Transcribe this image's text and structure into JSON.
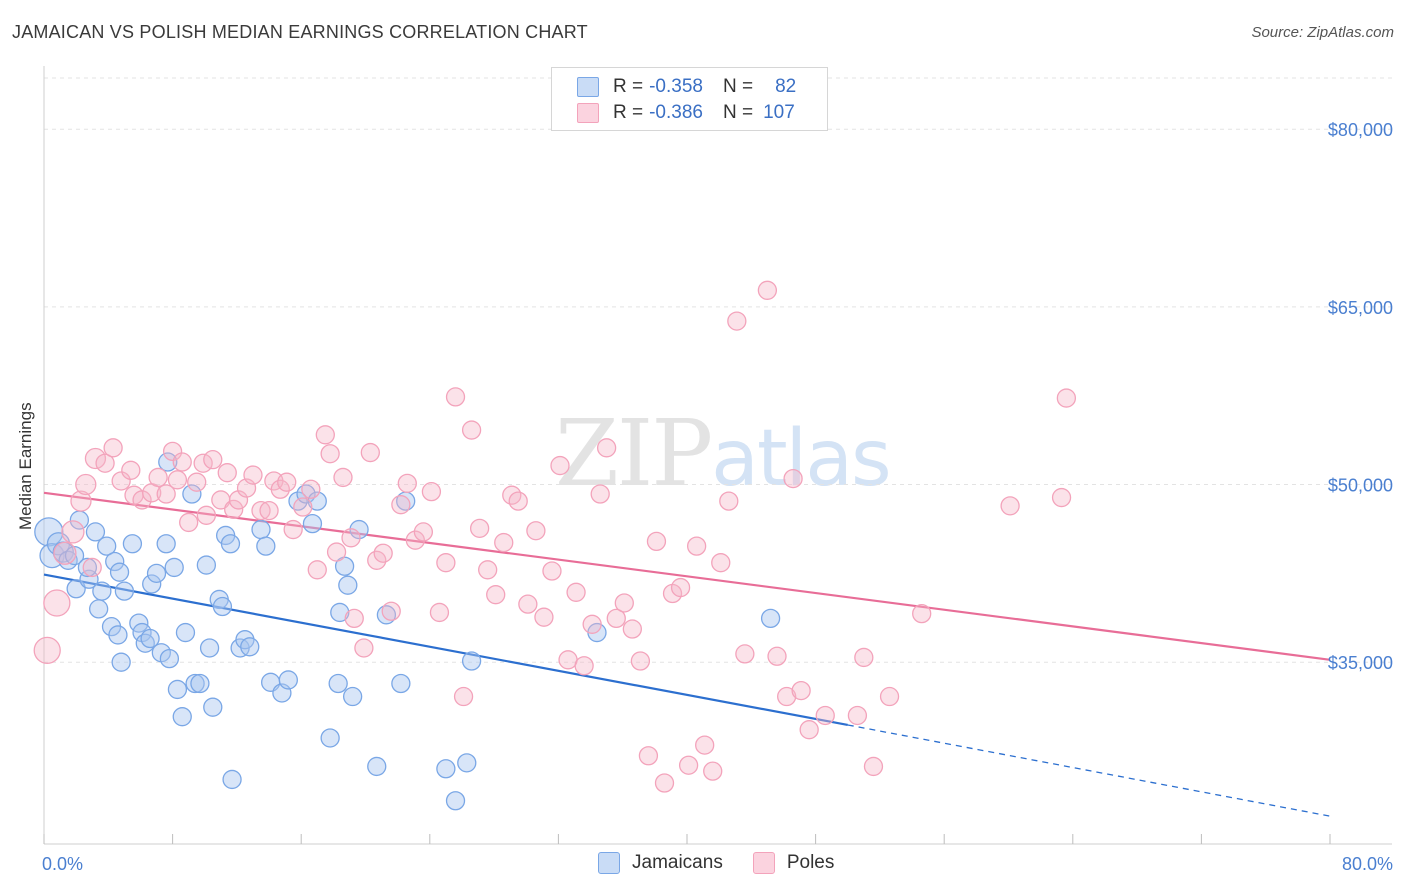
{
  "title": "JAMAICAN VS POLISH MEDIAN EARNINGS CORRELATION CHART",
  "source": "Source: ZipAtlas.com",
  "watermark": {
    "zip": "ZIP",
    "atlas": "atlas"
  },
  "legend": {
    "r_label": "R =",
    "n_label": "N =",
    "rows": [
      {
        "r": "-0.358",
        "n": "82",
        "color": "#a9c6f0"
      },
      {
        "r": "-0.386",
        "n": "107",
        "color": "#f6b6c8"
      }
    ]
  },
  "bottom_legend": [
    {
      "label": "Jamaicans",
      "color": "#a9c6f0"
    },
    {
      "label": "Poles",
      "color": "#f6b6c8"
    }
  ],
  "chart_data": {
    "type": "scatter",
    "title": "JAMAICAN VS POLISH MEDIAN EARNINGS CORRELATION CHART",
    "xlabel": "",
    "ylabel": "Median Earnings",
    "xlim": [
      0,
      80
    ],
    "ylim": [
      21000,
      85000
    ],
    "x_tick_labels": [
      "0.0%",
      "80.0%"
    ],
    "y_ticks": [
      {
        "value": 35000,
        "label": "$35,000"
      },
      {
        "value": 50000,
        "label": "$50,000"
      },
      {
        "value": 65000,
        "label": "$65,000"
      },
      {
        "value": 80000,
        "label": "$80,000"
      }
    ],
    "series": [
      {
        "name": "Jamaicans",
        "color": "#7aa7e6",
        "trend": {
          "x": [
            0,
            50
          ],
          "y": [
            42400,
            29700
          ],
          "dashed_to": [
            80,
            22000
          ],
          "color": "#2c6fcf"
        },
        "points": [
          [
            0.3,
            46000,
            14
          ],
          [
            0.5,
            44000,
            12
          ],
          [
            0.9,
            45000,
            11
          ],
          [
            1.2,
            44300,
            10
          ],
          [
            1.5,
            43600,
            9
          ],
          [
            1.9,
            44000,
            9
          ],
          [
            2.2,
            47000,
            9
          ],
          [
            2.0,
            41200,
            9
          ],
          [
            2.8,
            42000,
            9
          ],
          [
            2.7,
            43000,
            9
          ],
          [
            3.2,
            46000,
            9
          ],
          [
            3.4,
            39500,
            9
          ],
          [
            3.6,
            41000,
            9
          ],
          [
            3.9,
            44800,
            9
          ],
          [
            4.2,
            38000,
            9
          ],
          [
            4.4,
            43500,
            9
          ],
          [
            4.6,
            37300,
            9
          ],
          [
            4.7,
            42600,
            9
          ],
          [
            4.8,
            35000,
            9
          ],
          [
            5.0,
            41000,
            9
          ],
          [
            5.5,
            45000,
            9
          ],
          [
            5.9,
            38300,
            9
          ],
          [
            6.1,
            37500,
            9
          ],
          [
            6.3,
            36600,
            9
          ],
          [
            6.6,
            37000,
            9
          ],
          [
            6.7,
            41600,
            9
          ],
          [
            7.0,
            42500,
            9
          ],
          [
            7.3,
            35800,
            9
          ],
          [
            7.6,
            45000,
            9
          ],
          [
            7.8,
            35300,
            9
          ],
          [
            8.1,
            43000,
            9
          ],
          [
            8.3,
            32700,
            9
          ],
          [
            8.6,
            30400,
            9
          ],
          [
            8.8,
            37500,
            9
          ],
          [
            9.2,
            49200,
            9
          ],
          [
            9.4,
            33200,
            9
          ],
          [
            9.7,
            33200,
            9
          ],
          [
            10.1,
            43200,
            9
          ],
          [
            10.3,
            36200,
            9
          ],
          [
            10.5,
            31200,
            9
          ],
          [
            10.9,
            40300,
            9
          ],
          [
            11.1,
            39700,
            9
          ],
          [
            11.3,
            45700,
            9
          ],
          [
            11.6,
            45000,
            9
          ],
          [
            11.7,
            25100,
            9
          ],
          [
            12.2,
            36200,
            9
          ],
          [
            12.5,
            36900,
            9
          ],
          [
            12.8,
            36300,
            9
          ],
          [
            13.5,
            46200,
            9
          ],
          [
            13.8,
            44800,
            9
          ],
          [
            14.1,
            33300,
            9
          ],
          [
            14.8,
            32400,
            9
          ],
          [
            15.2,
            33500,
            9
          ],
          [
            15.8,
            48600,
            9
          ],
          [
            16.3,
            49200,
            9
          ],
          [
            16.7,
            46700,
            9
          ],
          [
            17.0,
            48600,
            9
          ],
          [
            17.8,
            28600,
            9
          ],
          [
            18.3,
            33200,
            9
          ],
          [
            18.4,
            39200,
            9
          ],
          [
            18.7,
            43100,
            9
          ],
          [
            18.9,
            41500,
            9
          ],
          [
            19.2,
            32100,
            9
          ],
          [
            19.6,
            46200,
            9
          ],
          [
            20.7,
            26200,
            9
          ],
          [
            21.3,
            39000,
            9
          ],
          [
            22.2,
            33200,
            9
          ],
          [
            22.5,
            48600,
            9
          ],
          [
            25.0,
            26000,
            9
          ],
          [
            25.6,
            23300,
            9
          ],
          [
            26.3,
            26500,
            9
          ],
          [
            26.6,
            35100,
            9
          ],
          [
            34.4,
            37500,
            9
          ],
          [
            45.2,
            38700,
            9
          ],
          [
            7.7,
            51900,
            9
          ]
        ]
      },
      {
        "name": "Poles",
        "color": "#f3a3bb",
        "trend": {
          "x": [
            0,
            80
          ],
          "y": [
            49300,
            35200
          ],
          "color": "#e86d97"
        },
        "points": [
          [
            0.2,
            36000,
            13
          ],
          [
            0.8,
            40000,
            13
          ],
          [
            1.3,
            44200,
            11
          ],
          [
            1.8,
            46000,
            11
          ],
          [
            2.3,
            48600,
            10
          ],
          [
            2.6,
            50000,
            10
          ],
          [
            3.0,
            43000,
            9
          ],
          [
            3.2,
            52200,
            10
          ],
          [
            3.8,
            51800,
            9
          ],
          [
            4.3,
            53100,
            9
          ],
          [
            4.8,
            50300,
            9
          ],
          [
            5.4,
            51200,
            9
          ],
          [
            5.6,
            49100,
            9
          ],
          [
            6.1,
            48700,
            9
          ],
          [
            6.7,
            49300,
            9
          ],
          [
            7.1,
            50600,
            9
          ],
          [
            7.6,
            49200,
            9
          ],
          [
            8.0,
            52800,
            9
          ],
          [
            8.3,
            50400,
            9
          ],
          [
            8.6,
            51900,
            9
          ],
          [
            9.0,
            46800,
            9
          ],
          [
            9.5,
            50200,
            9
          ],
          [
            9.9,
            51800,
            9
          ],
          [
            10.1,
            47400,
            9
          ],
          [
            10.5,
            52100,
            9
          ],
          [
            11.0,
            48700,
            9
          ],
          [
            11.4,
            51000,
            9
          ],
          [
            11.8,
            47900,
            9
          ],
          [
            12.1,
            48700,
            9
          ],
          [
            12.6,
            49700,
            9
          ],
          [
            13.0,
            50800,
            9
          ],
          [
            13.5,
            47800,
            9
          ],
          [
            14.0,
            47800,
            9
          ],
          [
            14.3,
            50300,
            9
          ],
          [
            14.7,
            49600,
            9
          ],
          [
            15.1,
            50200,
            9
          ],
          [
            15.5,
            46200,
            9
          ],
          [
            16.1,
            48100,
            9
          ],
          [
            16.6,
            49600,
            9
          ],
          [
            17.0,
            42800,
            9
          ],
          [
            17.5,
            54200,
            9
          ],
          [
            17.8,
            52600,
            9
          ],
          [
            18.2,
            44300,
            9
          ],
          [
            18.6,
            50600,
            9
          ],
          [
            19.1,
            45500,
            9
          ],
          [
            19.3,
            38700,
            9
          ],
          [
            19.9,
            36200,
            9
          ],
          [
            20.3,
            52700,
            9
          ],
          [
            20.7,
            43600,
            9
          ],
          [
            21.1,
            44200,
            9
          ],
          [
            21.6,
            39300,
            9
          ],
          [
            22.2,
            48300,
            9
          ],
          [
            22.6,
            50100,
            9
          ],
          [
            23.1,
            45300,
            9
          ],
          [
            23.6,
            46000,
            9
          ],
          [
            24.1,
            49400,
            9
          ],
          [
            24.6,
            39200,
            9
          ],
          [
            25.0,
            43400,
            9
          ],
          [
            25.6,
            57400,
            9
          ],
          [
            26.1,
            32100,
            9
          ],
          [
            26.6,
            54600,
            9
          ],
          [
            27.1,
            46300,
            9
          ],
          [
            27.6,
            42800,
            9
          ],
          [
            28.1,
            40700,
            9
          ],
          [
            28.6,
            45100,
            9
          ],
          [
            29.1,
            49100,
            9
          ],
          [
            29.5,
            48600,
            9
          ],
          [
            30.1,
            39900,
            9
          ],
          [
            30.6,
            46100,
            9
          ],
          [
            31.1,
            38800,
            9
          ],
          [
            31.6,
            42700,
            9
          ],
          [
            32.1,
            51600,
            9
          ],
          [
            32.6,
            35200,
            9
          ],
          [
            33.1,
            40900,
            9
          ],
          [
            33.6,
            34700,
            9
          ],
          [
            34.1,
            38200,
            9
          ],
          [
            34.6,
            49200,
            9
          ],
          [
            35.0,
            53100,
            9
          ],
          [
            35.6,
            38700,
            9
          ],
          [
            36.1,
            40000,
            9
          ],
          [
            36.6,
            37800,
            9
          ],
          [
            37.1,
            35100,
            9
          ],
          [
            37.6,
            27100,
            9
          ],
          [
            38.1,
            45200,
            9
          ],
          [
            38.6,
            24800,
            9
          ],
          [
            39.1,
            40800,
            9
          ],
          [
            39.6,
            41300,
            9
          ],
          [
            40.1,
            26300,
            9
          ],
          [
            40.6,
            44800,
            9
          ],
          [
            41.1,
            28000,
            9
          ],
          [
            41.6,
            25800,
            9
          ],
          [
            42.1,
            43400,
            9
          ],
          [
            42.6,
            48600,
            9
          ],
          [
            43.1,
            63800,
            9
          ],
          [
            43.6,
            35700,
            9
          ],
          [
            45.0,
            66400,
            9
          ],
          [
            45.6,
            35500,
            9
          ],
          [
            46.2,
            32100,
            9
          ],
          [
            46.6,
            50500,
            9
          ],
          [
            47.1,
            32600,
            9
          ],
          [
            47.6,
            29300,
            9
          ],
          [
            48.6,
            30500,
            9
          ],
          [
            50.6,
            30500,
            9
          ],
          [
            51.0,
            35400,
            9
          ],
          [
            51.6,
            26200,
            9
          ],
          [
            52.6,
            32100,
            9
          ],
          [
            54.6,
            39100,
            9
          ],
          [
            60.1,
            48200,
            9
          ],
          [
            63.6,
            57300,
            9
          ],
          [
            63.3,
            48900,
            9
          ]
        ]
      }
    ]
  }
}
